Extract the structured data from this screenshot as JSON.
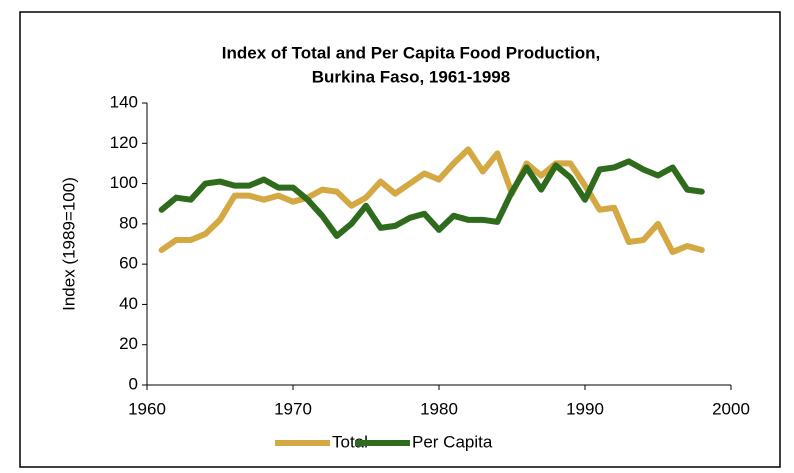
{
  "chart_data": {
    "type": "line",
    "title": [
      "Index of Total and Per Capita Food Production,",
      "Burkina Faso, 1961-1998"
    ],
    "y_label": "Index (1989=100)",
    "x": [
      1961,
      1962,
      1963,
      1964,
      1965,
      1966,
      1967,
      1968,
      1969,
      1970,
      1971,
      1972,
      1973,
      1974,
      1975,
      1976,
      1977,
      1978,
      1979,
      1980,
      1981,
      1982,
      1983,
      1984,
      1985,
      1986,
      1987,
      1988,
      1989,
      1990,
      1991,
      1992,
      1993,
      1994,
      1995,
      1996,
      1997,
      1998
    ],
    "series": [
      {
        "name": "Total",
        "color": "#d4a843",
        "values": [
          67,
          72,
          72,
          75,
          82,
          94,
          94,
          92,
          94,
          91,
          93,
          97,
          96,
          89,
          93,
          101,
          95,
          100,
          105,
          102,
          110,
          117,
          106,
          115,
          95,
          110,
          104,
          110,
          110,
          99,
          87,
          88,
          71,
          72,
          80,
          66,
          69,
          67
        ]
      },
      {
        "name": "Per Capita",
        "color": "#2f6b1c",
        "values": [
          87,
          93,
          92,
          100,
          101,
          99,
          99,
          102,
          98,
          98,
          92,
          84,
          74,
          80,
          89,
          78,
          79,
          83,
          85,
          77,
          84,
          82,
          82,
          81,
          96,
          108,
          97,
          109,
          103,
          92,
          107,
          108,
          111,
          107,
          104,
          108,
          97,
          96
        ]
      }
    ],
    "xlim": [
      1960,
      2000
    ],
    "xticks": [
      1960,
      1970,
      1980,
      1990,
      2000
    ],
    "ylim": [
      0,
      140
    ],
    "yticks": [
      0,
      20,
      40,
      60,
      80,
      100,
      120,
      140
    ],
    "legend": "bottom"
  }
}
